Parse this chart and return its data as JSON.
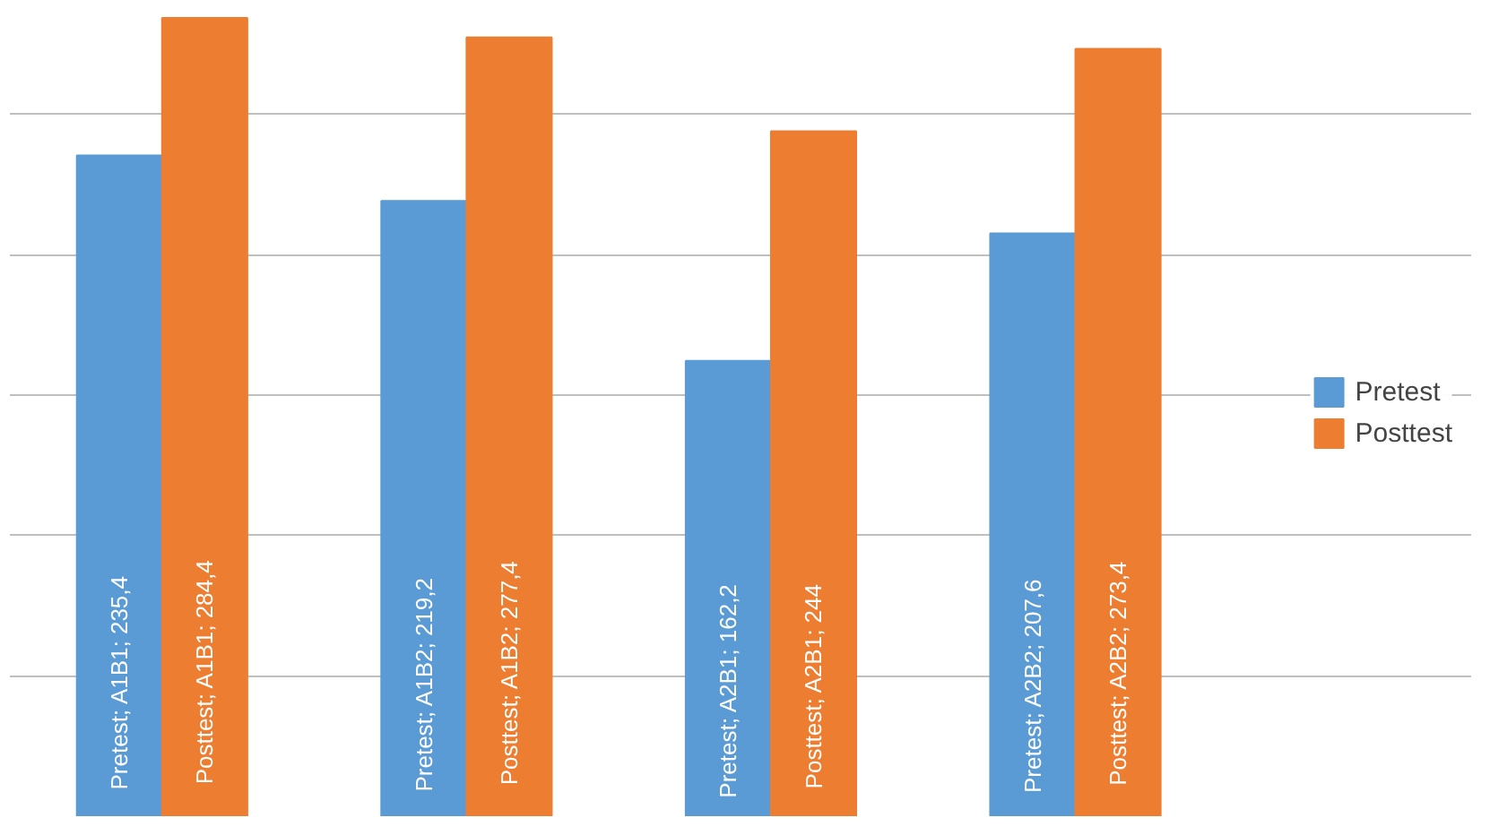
{
  "chart_data": {
    "type": "bar",
    "categories": [
      null,
      null,
      null,
      null
    ],
    "series": [
      {
        "name": "Pretest",
        "color": "#5b9bd5",
        "values": [
          235.4,
          219.2,
          162.2,
          207.6
        ],
        "value_labels": [
          "Pretest; A1B1; 235,4",
          "Pretest; A1B2; 219,2",
          "Pretest; A2B1; 162,2",
          "Pretest; A2B2; 207,6"
        ]
      },
      {
        "name": "Posttest",
        "color": "#ed7d31",
        "values": [
          284.4,
          277.4,
          244,
          273.4
        ],
        "value_labels": [
          "Posttest; A1B1; 284,4",
          "Posttest; A1B2; 277,4",
          "Posttest; A2B1; 244",
          "Posttest; A2B2; 273,4"
        ]
      }
    ],
    "grid": "y",
    "tick_labels": false,
    "legend": "right"
  }
}
